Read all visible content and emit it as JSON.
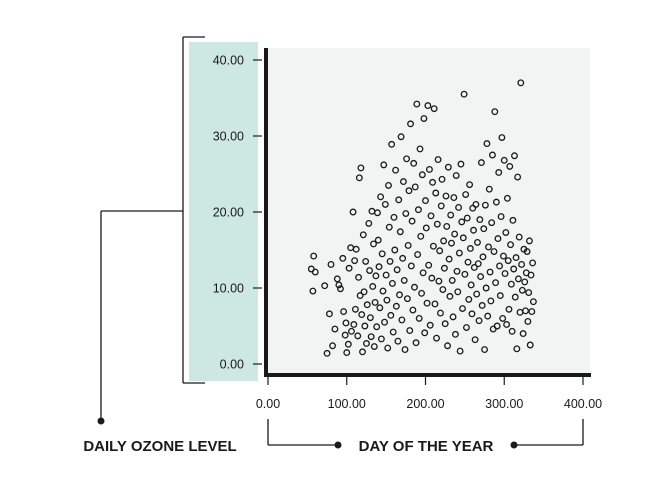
{
  "colors": {
    "axis_band": "#cde8e3",
    "plot_bg": "#f1f4f2",
    "ink": "#1a1a1a"
  },
  "chart_data": {
    "type": "scatter",
    "xlabel": "DAY OF THE YEAR",
    "ylabel": "DAILY OZONE LEVEL",
    "xlim": [
      0,
      400
    ],
    "ylim": [
      0,
      40
    ],
    "x_ticks": [
      "0.00",
      "100.00",
      "200.00",
      "300.00",
      "400.00"
    ],
    "y_ticks": [
      "0.00",
      "10.00",
      "20.00",
      "30.00",
      "40.00"
    ],
    "grid": false,
    "marker": "open-circle",
    "points": [
      [
        55,
        12.5
      ],
      [
        58,
        14.2
      ],
      [
        60,
        12.1
      ],
      [
        57,
        9.6
      ],
      [
        72,
        10.3
      ],
      [
        78,
        6.6
      ],
      [
        80,
        13.1
      ],
      [
        75,
        1.4
      ],
      [
        82,
        2.4
      ],
      [
        85,
        4.6
      ],
      [
        88,
        11.2
      ],
      [
        90,
        10.4
      ],
      [
        92,
        9.9
      ],
      [
        95,
        13.9
      ],
      [
        96,
        6.9
      ],
      [
        98,
        3.8
      ],
      [
        99,
        5.4
      ],
      [
        100,
        1.5
      ],
      [
        102,
        2.6
      ],
      [
        103,
        12.6
      ],
      [
        105,
        15.3
      ],
      [
        106,
        4.3
      ],
      [
        108,
        20.0
      ],
      [
        109,
        5.2
      ],
      [
        110,
        13.6
      ],
      [
        111,
        7.2
      ],
      [
        112,
        15.1
      ],
      [
        114,
        3.7
      ],
      [
        115,
        11.4
      ],
      [
        116,
        24.5
      ],
      [
        117,
        9.0
      ],
      [
        118,
        25.8
      ],
      [
        119,
        6.5
      ],
      [
        120,
        1.6
      ],
      [
        121,
        17.0
      ],
      [
        122,
        9.5
      ],
      [
        123,
        5.0
      ],
      [
        124,
        13.5
      ],
      [
        125,
        2.7
      ],
      [
        126,
        7.8
      ],
      [
        128,
        18.5
      ],
      [
        129,
        12.3
      ],
      [
        130,
        6.1
      ],
      [
        131,
        3.6
      ],
      [
        132,
        20.1
      ],
      [
        133,
        10.2
      ],
      [
        134,
        15.8
      ],
      [
        135,
        2.3
      ],
      [
        136,
        8.1
      ],
      [
        137,
        11.6
      ],
      [
        138,
        4.9
      ],
      [
        139,
        19.9
      ],
      [
        140,
        16.3
      ],
      [
        141,
        12.8
      ],
      [
        142,
        7.4
      ],
      [
        143,
        22.0
      ],
      [
        144,
        3.3
      ],
      [
        145,
        14.5
      ],
      [
        146,
        9.6
      ],
      [
        147,
        26.2
      ],
      [
        148,
        5.5
      ],
      [
        149,
        21.0
      ],
      [
        150,
        11.7
      ],
      [
        151,
        8.4
      ],
      [
        152,
        2.1
      ],
      [
        153,
        23.5
      ],
      [
        154,
        18.0
      ],
      [
        155,
        13.5
      ],
      [
        156,
        6.4
      ],
      [
        157,
        28.9
      ],
      [
        158,
        10.6
      ],
      [
        159,
        4.2
      ],
      [
        160,
        19.3
      ],
      [
        161,
        15.0
      ],
      [
        162,
        25.5
      ],
      [
        163,
        7.6
      ],
      [
        164,
        12.4
      ],
      [
        165,
        3.0
      ],
      [
        166,
        21.6
      ],
      [
        167,
        9.1
      ],
      [
        168,
        17.4
      ],
      [
        169,
        29.9
      ],
      [
        170,
        5.8
      ],
      [
        171,
        13.9
      ],
      [
        172,
        24.0
      ],
      [
        173,
        11.0
      ],
      [
        174,
        1.9
      ],
      [
        175,
        19.8
      ],
      [
        176,
        27.0
      ],
      [
        177,
        8.6
      ],
      [
        178,
        15.6
      ],
      [
        179,
        22.8
      ],
      [
        180,
        4.4
      ],
      [
        181,
        31.6
      ],
      [
        182,
        12.9
      ],
      [
        183,
        18.8
      ],
      [
        184,
        7.1
      ],
      [
        185,
        26.4
      ],
      [
        186,
        10.1
      ],
      [
        187,
        23.3
      ],
      [
        188,
        2.8
      ],
      [
        189,
        34.2
      ],
      [
        190,
        14.4
      ],
      [
        191,
        20.3
      ],
      [
        192,
        6.0
      ],
      [
        193,
        28.3
      ],
      [
        194,
        16.8
      ],
      [
        195,
        9.3
      ],
      [
        196,
        24.9
      ],
      [
        197,
        12.0
      ],
      [
        198,
        32.3
      ],
      [
        199,
        4.1
      ],
      [
        200,
        21.5
      ],
      [
        201,
        17.9
      ],
      [
        202,
        8.0
      ],
      [
        203,
        34.0
      ],
      [
        204,
        13.0
      ],
      [
        205,
        25.6
      ],
      [
        206,
        5.1
      ],
      [
        207,
        19.5
      ],
      [
        208,
        11.3
      ],
      [
        209,
        23.9
      ],
      [
        210,
        15.5
      ],
      [
        211,
        33.6
      ],
      [
        212,
        7.9
      ],
      [
        213,
        22.5
      ],
      [
        214,
        3.4
      ],
      [
        215,
        18.4
      ],
      [
        216,
        26.9
      ],
      [
        217,
        10.9
      ],
      [
        218,
        14.9
      ],
      [
        219,
        6.7
      ],
      [
        220,
        20.8
      ],
      [
        221,
        24.3
      ],
      [
        222,
        9.8
      ],
      [
        223,
        16.2
      ],
      [
        224,
        12.6
      ],
      [
        225,
        5.3
      ],
      [
        226,
        22.1
      ],
      [
        227,
        18.1
      ],
      [
        228,
        2.4
      ],
      [
        229,
        25.9
      ],
      [
        230,
        13.8
      ],
      [
        231,
        8.9
      ],
      [
        232,
        19.6
      ],
      [
        233,
        15.9
      ],
      [
        234,
        11.0
      ],
      [
        235,
        6.2
      ],
      [
        236,
        21.9
      ],
      [
        237,
        17.1
      ],
      [
        238,
        3.9
      ],
      [
        239,
        24.8
      ],
      [
        240,
        12.2
      ],
      [
        241,
        9.5
      ],
      [
        242,
        20.6
      ],
      [
        243,
        14.6
      ],
      [
        244,
        1.7
      ],
      [
        245,
        26.3
      ],
      [
        246,
        18.7
      ],
      [
        247,
        7.3
      ],
      [
        248,
        16.6
      ],
      [
        249,
        35.5
      ],
      [
        250,
        11.8
      ],
      [
        251,
        22.3
      ],
      [
        252,
        4.8
      ],
      [
        253,
        19.2
      ],
      [
        254,
        13.4
      ],
      [
        255,
        8.5
      ],
      [
        256,
        23.6
      ],
      [
        257,
        15.2
      ],
      [
        258,
        10.4
      ],
      [
        259,
        6.6
      ],
      [
        260,
        20.5
      ],
      [
        261,
        17.6
      ],
      [
        262,
        12.7
      ],
      [
        263,
        3.2
      ],
      [
        264,
        21.0
      ],
      [
        265,
        9.2
      ],
      [
        266,
        16.0
      ],
      [
        267,
        13.2
      ],
      [
        268,
        5.7
      ],
      [
        269,
        19.0
      ],
      [
        270,
        11.5
      ],
      [
        271,
        26.5
      ],
      [
        272,
        7.7
      ],
      [
        273,
        14.1
      ],
      [
        274,
        17.8
      ],
      [
        275,
        1.9
      ],
      [
        276,
        20.9
      ],
      [
        277,
        10.0
      ],
      [
        278,
        29.0
      ],
      [
        279,
        6.3
      ],
      [
        280,
        15.4
      ],
      [
        281,
        23.0
      ],
      [
        282,
        12.1
      ],
      [
        283,
        8.3
      ],
      [
        284,
        18.6
      ],
      [
        285,
        27.5
      ],
      [
        286,
        4.6
      ],
      [
        287,
        14.8
      ],
      [
        288,
        33.2
      ],
      [
        289,
        10.7
      ],
      [
        290,
        21.3
      ],
      [
        291,
        5.0
      ],
      [
        292,
        16.5
      ],
      [
        293,
        25.2
      ],
      [
        294,
        12.9
      ],
      [
        295,
        9.0
      ],
      [
        296,
        19.4
      ],
      [
        297,
        29.8
      ],
      [
        298,
        6.0
      ],
      [
        299,
        14.2
      ],
      [
        300,
        26.8
      ],
      [
        301,
        11.9
      ],
      [
        302,
        17.3
      ],
      [
        303,
        5.2
      ],
      [
        304,
        21.8
      ],
      [
        305,
        13.6
      ],
      [
        306,
        7.2
      ],
      [
        307,
        26.0
      ],
      [
        308,
        15.7
      ],
      [
        309,
        10.5
      ],
      [
        310,
        4.3
      ],
      [
        311,
        18.9
      ],
      [
        312,
        12.5
      ],
      [
        313,
        27.4
      ],
      [
        314,
        8.8
      ],
      [
        315,
        14.0
      ],
      [
        316,
        2.0
      ],
      [
        317,
        24.6
      ],
      [
        318,
        11.2
      ],
      [
        319,
        16.7
      ],
      [
        320,
        6.8
      ],
      [
        321,
        37.0
      ],
      [
        322,
        13.1
      ],
      [
        323,
        9.7
      ],
      [
        324,
        4.0
      ],
      [
        325,
        15.1
      ],
      [
        326,
        10.8
      ],
      [
        327,
        7.0
      ],
      [
        328,
        12.0
      ],
      [
        329,
        14.8
      ],
      [
        330,
        5.6
      ],
      [
        331,
        9.4
      ],
      [
        332,
        16.2
      ],
      [
        333,
        2.5
      ],
      [
        334,
        11.7
      ],
      [
        335,
        6.9
      ],
      [
        336,
        13.3
      ],
      [
        337,
        8.2
      ]
    ]
  }
}
